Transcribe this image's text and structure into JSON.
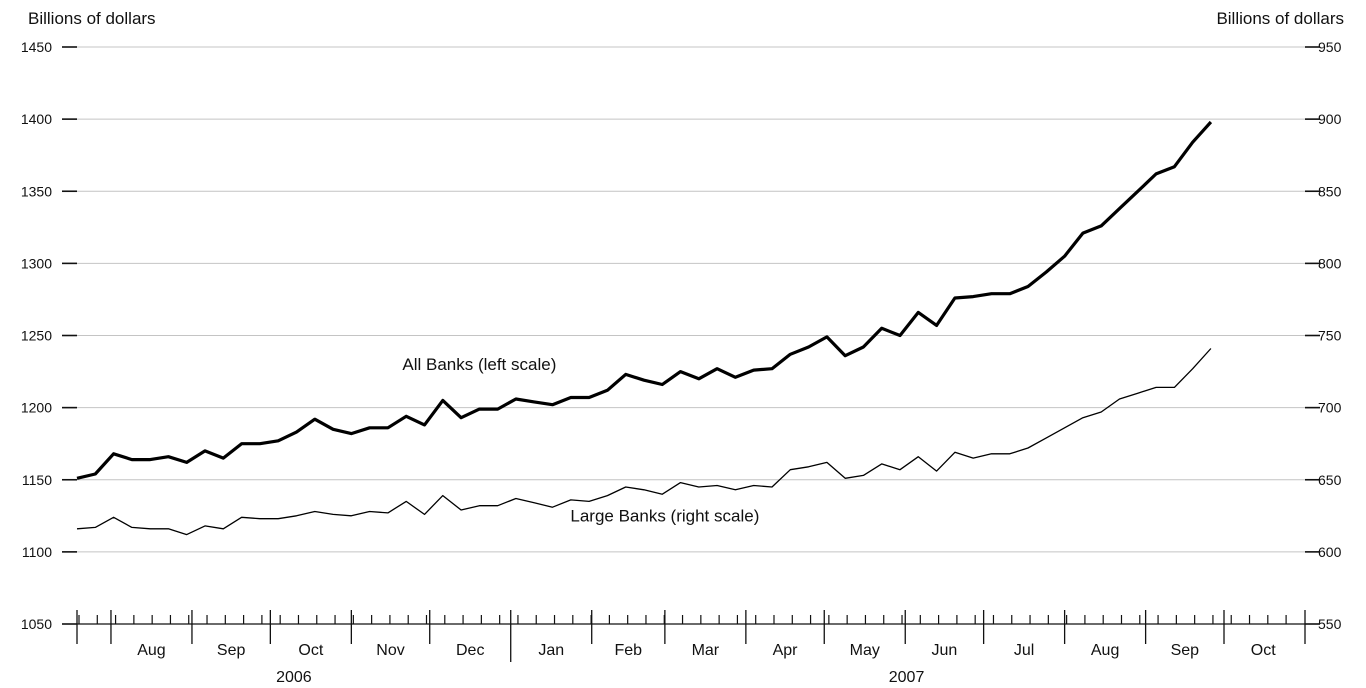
{
  "chart_data": {
    "type": "line",
    "left_axis_label": "Billions of dollars",
    "right_axis_label": "Billions of dollars",
    "left_ylim": [
      1050,
      1450
    ],
    "right_ylim": [
      550,
      950
    ],
    "left_ticks": [
      1050,
      1100,
      1150,
      1200,
      1250,
      1300,
      1350,
      1400,
      1450
    ],
    "right_ticks": [
      550,
      600,
      650,
      700,
      750,
      800,
      850,
      900,
      950
    ],
    "grid": true,
    "x_start": "2006-07-19",
    "x_frequency": "weekly",
    "months": [
      {
        "label": "Aug",
        "start": "2006-08-01",
        "year": "2006"
      },
      {
        "label": "Sep",
        "start": "2006-09-01",
        "year": "2006"
      },
      {
        "label": "Oct",
        "start": "2006-10-01",
        "year": "2006"
      },
      {
        "label": "Nov",
        "start": "2006-11-01",
        "year": "2006"
      },
      {
        "label": "Dec",
        "start": "2006-12-01",
        "year": "2006"
      },
      {
        "label": "Jan",
        "start": "2007-01-01",
        "year": "2007"
      },
      {
        "label": "Feb",
        "start": "2007-02-01",
        "year": "2007"
      },
      {
        "label": "Mar",
        "start": "2007-03-01",
        "year": "2007"
      },
      {
        "label": "Apr",
        "start": "2007-04-01",
        "year": "2007"
      },
      {
        "label": "May",
        "start": "2007-05-01",
        "year": "2007"
      },
      {
        "label": "Jun",
        "start": "2007-06-01",
        "year": "2007"
      },
      {
        "label": "Jul",
        "start": "2007-07-01",
        "year": "2007"
      },
      {
        "label": "Aug",
        "start": "2007-08-01",
        "year": "2007"
      },
      {
        "label": "Sep",
        "start": "2007-09-01",
        "year": "2007"
      },
      {
        "label": "Oct",
        "start": "2007-10-01",
        "year": "2007"
      }
    ],
    "years": [
      {
        "label": "2006",
        "from": "2006-07-19",
        "to": "2007-01-01"
      },
      {
        "label": "2007",
        "from": "2007-01-01",
        "to": "2007-10-31"
      }
    ],
    "series": [
      {
        "name": "All Banks (left scale)",
        "axis": "left",
        "values": [
          1151,
          1154,
          1168,
          1164,
          1164,
          1166,
          1162,
          1170,
          1165,
          1175,
          1175,
          1177,
          1183,
          1192,
          1185,
          1182,
          1186,
          1186,
          1194,
          1188,
          1205,
          1193,
          1199,
          1199,
          1206,
          1204,
          1202,
          1207,
          1207,
          1212,
          1223,
          1219,
          1216,
          1225,
          1220,
          1227,
          1221,
          1226,
          1227,
          1237,
          1242,
          1249,
          1236,
          1242,
          1255,
          1250,
          1266,
          1257,
          1276,
          1277,
          1279,
          1279,
          1284,
          1294,
          1305,
          1321,
          1326,
          1338,
          1350,
          1362,
          1367,
          1384,
          1398
        ]
      },
      {
        "name": "Large Banks (right scale)",
        "axis": "right",
        "values": [
          616,
          617,
          624,
          617,
          616,
          616,
          612,
          618,
          616,
          624,
          623,
          623,
          625,
          628,
          626,
          625,
          628,
          627,
          635,
          626,
          639,
          629,
          632,
          632,
          637,
          634,
          631,
          636,
          635,
          639,
          645,
          643,
          640,
          648,
          645,
          646,
          643,
          646,
          645,
          657,
          659,
          662,
          651,
          653,
          661,
          657,
          666,
          656,
          669,
          665,
          668,
          668,
          672,
          679,
          686,
          693,
          697,
          706,
          710,
          714,
          714,
          727,
          741
        ]
      }
    ],
    "annotations": [
      {
        "text": "All Banks (left scale)",
        "x": "2006-12-20",
        "y": 1226,
        "axis": "left"
      },
      {
        "text": "Large Banks (right scale)",
        "x": "2007-03-01",
        "y": 621,
        "axis": "right"
      }
    ]
  }
}
